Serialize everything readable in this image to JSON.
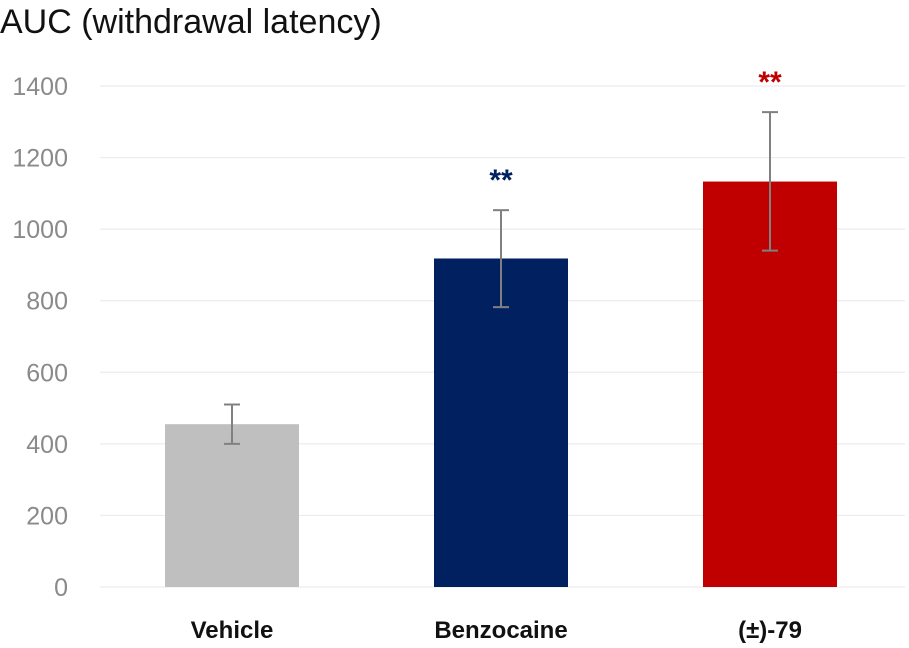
{
  "chart_data": {
    "type": "bar",
    "title": "AUC (withdrawal latency)",
    "xlabel": "",
    "ylabel": "",
    "categories": [
      "Vehicle",
      "Benzocaine",
      "(±)-79"
    ],
    "values": [
      455,
      918,
      1133
    ],
    "error_low": [
      400,
      782,
      940
    ],
    "error_high": [
      510,
      1053,
      1327
    ],
    "colors": [
      "#bfbfbf",
      "#002060",
      "#c00000"
    ],
    "significance": [
      "",
      "**",
      "**"
    ],
    "ylim": [
      0,
      1400
    ],
    "yticks": [
      0,
      200,
      400,
      600,
      800,
      1000,
      1200,
      1400
    ],
    "grid": true,
    "legend": "none"
  }
}
